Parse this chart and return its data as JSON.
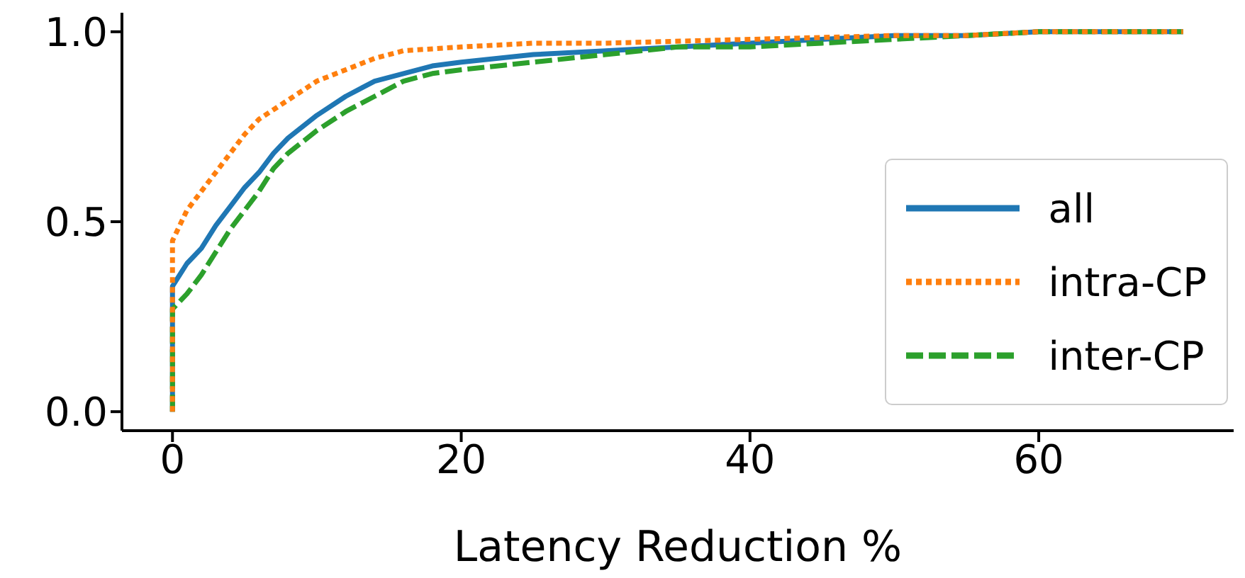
{
  "chart_data": {
    "type": "line",
    "xlabel": "Latency Reduction %",
    "xlim": [
      -3.5,
      73.5
    ],
    "xticks": [
      0,
      20,
      40,
      60
    ],
    "ylim": [
      -0.05,
      1.05
    ],
    "yticks": [
      {
        "value": 0,
        "label": "0.0"
      },
      {
        "value": 0.5,
        "label": "0.5"
      },
      {
        "value": 1,
        "label": "1.0"
      }
    ],
    "legend": "right",
    "grid": false,
    "marker": "none",
    "series": [
      {
        "name": "all",
        "color": "#1f77b4",
        "line_style": "solid",
        "x": [
          0,
          0,
          1,
          2,
          3,
          4,
          5,
          6,
          7,
          8,
          10,
          12,
          14,
          16,
          18,
          20,
          25,
          30,
          35,
          40,
          45,
          50,
          55,
          60,
          70
        ],
        "values": [
          0,
          0.33,
          0.39,
          0.43,
          0.49,
          0.54,
          0.59,
          0.63,
          0.68,
          0.72,
          0.78,
          0.83,
          0.87,
          0.89,
          0.91,
          0.92,
          0.94,
          0.95,
          0.96,
          0.97,
          0.98,
          0.99,
          0.99,
          1.0,
          1.0
        ]
      },
      {
        "name": "intra-CP",
        "color": "#ff7f0e",
        "line_style": "dotted",
        "x": [
          0,
          0,
          1,
          2,
          3,
          4,
          5,
          6,
          8,
          10,
          12,
          14,
          16,
          20,
          25,
          30,
          40,
          50,
          55,
          60,
          70
        ],
        "values": [
          0,
          0.45,
          0.53,
          0.58,
          0.63,
          0.68,
          0.73,
          0.77,
          0.82,
          0.87,
          0.9,
          0.93,
          0.95,
          0.96,
          0.97,
          0.97,
          0.98,
          0.99,
          0.99,
          1.0,
          1.0
        ]
      },
      {
        "name": "inter-CP",
        "color": "#2ca02c",
        "line_style": "dashed",
        "x": [
          0,
          0,
          1,
          2,
          3,
          4,
          5,
          6,
          7,
          8,
          10,
          12,
          14,
          16,
          18,
          20,
          25,
          30,
          35,
          40,
          45,
          50,
          55,
          60,
          70
        ],
        "values": [
          0,
          0.27,
          0.31,
          0.36,
          0.42,
          0.48,
          0.53,
          0.58,
          0.64,
          0.68,
          0.74,
          0.79,
          0.83,
          0.87,
          0.89,
          0.9,
          0.92,
          0.94,
          0.96,
          0.96,
          0.97,
          0.98,
          0.99,
          1.0,
          1.0
        ]
      }
    ]
  }
}
